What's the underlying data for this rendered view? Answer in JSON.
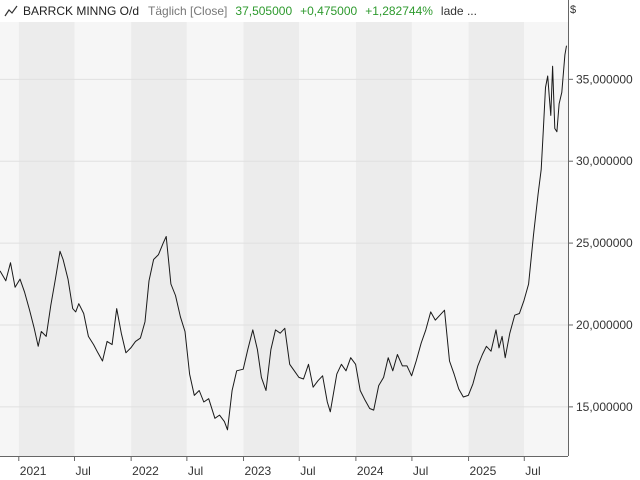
{
  "header": {
    "symbol_icon": "line-chart-icon",
    "instrument": "BARRCK MINNG O/d",
    "interval": "Täglich [Close]",
    "last": "37,505000",
    "change_abs": "+0,475000",
    "change_pct": "+1,282744%",
    "status": "lade ..."
  },
  "currency": "$",
  "colors": {
    "line": "#1a1a1a",
    "positive": "#2e9a2e",
    "band_a": "#f6f6f6",
    "band_b": "#ececec",
    "grid": "#e0e0e0"
  },
  "chart_data": {
    "type": "line",
    "title": "",
    "xlabel": "",
    "ylabel": "",
    "ylim": [
      12000000,
      38500000
    ],
    "xlim": [
      "2020-11-01",
      "2025-11-20"
    ],
    "y_ticks": [
      15000000,
      20000000,
      25000000,
      30000000,
      35000000
    ],
    "y_tick_labels": [
      "15,000000",
      "20,000000",
      "25,000000",
      "30,000000",
      "35,000000"
    ],
    "x_ticks": [
      {
        "date": "2021-01-01",
        "label": "2021"
      },
      {
        "date": "2021-07-01",
        "label": "Jul"
      },
      {
        "date": "2022-01-01",
        "label": "2022"
      },
      {
        "date": "2022-07-01",
        "label": "Jul"
      },
      {
        "date": "2023-01-01",
        "label": "2023"
      },
      {
        "date": "2023-07-01",
        "label": "Jul"
      },
      {
        "date": "2024-01-01",
        "label": "2024"
      },
      {
        "date": "2024-07-01",
        "label": "Jul"
      },
      {
        "date": "2025-01-01",
        "label": "2025"
      },
      {
        "date": "2025-07-01",
        "label": "Jul"
      }
    ],
    "grid": true,
    "series": [
      {
        "values": [
          [
            "2020-11-01",
            23300000
          ],
          [
            "2020-11-20",
            22700000
          ],
          [
            "2020-12-05",
            23800000
          ],
          [
            "2020-12-20",
            22300000
          ],
          [
            "2021-01-05",
            22800000
          ],
          [
            "2021-01-20",
            22000000
          ],
          [
            "2021-02-05",
            20900000
          ],
          [
            "2021-02-20",
            19800000
          ],
          [
            "2021-03-05",
            18700000
          ],
          [
            "2021-03-15",
            19600000
          ],
          [
            "2021-03-31",
            19300000
          ],
          [
            "2021-04-15",
            21200000
          ],
          [
            "2021-04-30",
            22800000
          ],
          [
            "2021-05-15",
            24500000
          ],
          [
            "2021-05-25",
            24000000
          ],
          [
            "2021-06-10",
            22800000
          ],
          [
            "2021-06-25",
            21000000
          ],
          [
            "2021-07-05",
            20800000
          ],
          [
            "2021-07-15",
            21300000
          ],
          [
            "2021-07-31",
            20700000
          ],
          [
            "2021-08-15",
            19300000
          ],
          [
            "2021-09-01",
            18800000
          ],
          [
            "2021-09-15",
            18300000
          ],
          [
            "2021-09-30",
            17800000
          ],
          [
            "2021-10-15",
            19000000
          ],
          [
            "2021-10-31",
            18800000
          ],
          [
            "2021-11-15",
            21000000
          ],
          [
            "2021-11-30",
            19500000
          ],
          [
            "2021-12-15",
            18300000
          ],
          [
            "2021-12-31",
            18600000
          ],
          [
            "2022-01-15",
            19000000
          ],
          [
            "2022-01-31",
            19200000
          ],
          [
            "2022-02-15",
            20200000
          ],
          [
            "2022-02-28",
            22700000
          ],
          [
            "2022-03-15",
            24000000
          ],
          [
            "2022-03-31",
            24300000
          ],
          [
            "2022-04-15",
            25000000
          ],
          [
            "2022-04-25",
            25400000
          ],
          [
            "2022-05-10",
            22500000
          ],
          [
            "2022-05-25",
            21800000
          ],
          [
            "2022-06-10",
            20500000
          ],
          [
            "2022-06-25",
            19600000
          ],
          [
            "2022-07-10",
            17000000
          ],
          [
            "2022-07-25",
            15700000
          ],
          [
            "2022-08-10",
            16000000
          ],
          [
            "2022-08-25",
            15300000
          ],
          [
            "2022-09-10",
            15500000
          ],
          [
            "2022-09-30",
            14300000
          ],
          [
            "2022-10-15",
            14500000
          ],
          [
            "2022-10-31",
            14100000
          ],
          [
            "2022-11-10",
            13600000
          ],
          [
            "2022-11-25",
            16000000
          ],
          [
            "2022-12-10",
            17200000
          ],
          [
            "2022-12-31",
            17300000
          ],
          [
            "2023-01-15",
            18500000
          ],
          [
            "2023-01-31",
            19700000
          ],
          [
            "2023-02-15",
            18500000
          ],
          [
            "2023-02-28",
            16800000
          ],
          [
            "2023-03-15",
            16000000
          ],
          [
            "2023-03-31",
            18500000
          ],
          [
            "2023-04-15",
            19700000
          ],
          [
            "2023-04-30",
            19500000
          ],
          [
            "2023-05-15",
            19800000
          ],
          [
            "2023-05-31",
            17600000
          ],
          [
            "2023-06-15",
            17200000
          ],
          [
            "2023-06-30",
            16800000
          ],
          [
            "2023-07-15",
            16700000
          ],
          [
            "2023-07-31",
            17600000
          ],
          [
            "2023-08-15",
            16200000
          ],
          [
            "2023-08-31",
            16600000
          ],
          [
            "2023-09-15",
            16900000
          ],
          [
            "2023-09-30",
            15300000
          ],
          [
            "2023-10-10",
            14700000
          ],
          [
            "2023-10-31",
            17000000
          ],
          [
            "2023-11-15",
            17600000
          ],
          [
            "2023-11-30",
            17200000
          ],
          [
            "2023-12-15",
            18000000
          ],
          [
            "2023-12-31",
            17600000
          ],
          [
            "2024-01-15",
            16000000
          ],
          [
            "2024-01-31",
            15400000
          ],
          [
            "2024-02-15",
            14900000
          ],
          [
            "2024-02-28",
            14800000
          ],
          [
            "2024-03-15",
            16300000
          ],
          [
            "2024-03-31",
            16800000
          ],
          [
            "2024-04-15",
            18000000
          ],
          [
            "2024-04-30",
            17200000
          ],
          [
            "2024-05-15",
            18200000
          ],
          [
            "2024-05-31",
            17500000
          ],
          [
            "2024-06-15",
            17500000
          ],
          [
            "2024-06-30",
            16900000
          ],
          [
            "2024-07-15",
            17800000
          ],
          [
            "2024-07-31",
            18900000
          ],
          [
            "2024-08-15",
            19700000
          ],
          [
            "2024-08-31",
            20800000
          ],
          [
            "2024-09-15",
            20300000
          ],
          [
            "2024-09-30",
            20600000
          ],
          [
            "2024-10-15",
            20900000
          ],
          [
            "2024-10-31",
            17800000
          ],
          [
            "2024-11-15",
            17000000
          ],
          [
            "2024-11-30",
            16100000
          ],
          [
            "2024-12-15",
            15600000
          ],
          [
            "2024-12-31",
            15700000
          ],
          [
            "2025-01-15",
            16400000
          ],
          [
            "2025-01-31",
            17500000
          ],
          [
            "2025-02-15",
            18200000
          ],
          [
            "2025-02-28",
            18700000
          ],
          [
            "2025-03-15",
            18400000
          ],
          [
            "2025-03-31",
            19700000
          ],
          [
            "2025-04-10",
            18600000
          ],
          [
            "2025-04-20",
            19300000
          ],
          [
            "2025-04-30",
            18000000
          ],
          [
            "2025-05-15",
            19500000
          ],
          [
            "2025-05-31",
            20600000
          ],
          [
            "2025-06-15",
            20700000
          ],
          [
            "2025-06-30",
            21500000
          ],
          [
            "2025-07-15",
            22500000
          ],
          [
            "2025-07-31",
            25500000
          ],
          [
            "2025-08-15",
            28000000
          ],
          [
            "2025-08-25",
            29500000
          ],
          [
            "2025-09-01",
            32000000
          ],
          [
            "2025-09-08",
            34500000
          ],
          [
            "2025-09-15",
            35200000
          ],
          [
            "2025-09-20",
            34000000
          ],
          [
            "2025-09-25",
            32800000
          ],
          [
            "2025-10-01",
            35800000
          ],
          [
            "2025-10-08",
            32000000
          ],
          [
            "2025-10-15",
            31800000
          ],
          [
            "2025-10-22",
            33500000
          ],
          [
            "2025-10-31",
            34200000
          ],
          [
            "2025-11-10",
            36500000
          ],
          [
            "2025-11-15",
            37050000
          ]
        ]
      }
    ]
  }
}
